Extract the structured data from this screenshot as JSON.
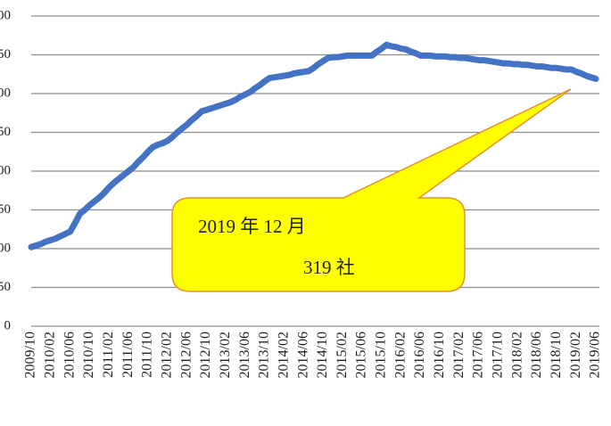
{
  "chart_data": {
    "type": "line",
    "categories": [
      "2009/10",
      null,
      null,
      null,
      "2010/02",
      null,
      null,
      null,
      "2010/06",
      null,
      null,
      null,
      "2010/10",
      null,
      null,
      null,
      "2011/02",
      null,
      null,
      null,
      "2011/06",
      null,
      null,
      null,
      "2011/10",
      null,
      null,
      null,
      "2012/02",
      null,
      null,
      null,
      "2012/06",
      null,
      null,
      null,
      "2012/10",
      null,
      null,
      null,
      "2013/02",
      null,
      null,
      null,
      "2013/06",
      null,
      null,
      null,
      "2013/10",
      null,
      null,
      null,
      "2014/02",
      null,
      null,
      null,
      "2014/06",
      null,
      null,
      null,
      "2014/10",
      null,
      null,
      null,
      "2015/02",
      null,
      null,
      null,
      "2015/06",
      null,
      null,
      null,
      "2015/10",
      null,
      null,
      null,
      "2016/02",
      null,
      null,
      null,
      "2016/06",
      null,
      null,
      null,
      "2016/10",
      null,
      null,
      null,
      "2017/02",
      null,
      null,
      null,
      "2017/06",
      null,
      null,
      null,
      "2017/10",
      null,
      null,
      null,
      "2018/02",
      null,
      null,
      null,
      "2018/06",
      null,
      null,
      null,
      "2018/10",
      null,
      null,
      null,
      "2019/02",
      null,
      null,
      null,
      "2019/06"
    ],
    "series": [
      {
        "color": "#4472c4",
        "values": [
          102,
          104,
          106,
          109,
          111,
          113,
          116,
          119,
          122,
          133,
          145,
          150,
          156,
          161,
          166,
          172,
          179,
          185,
          190,
          195,
          200,
          205,
          212,
          218,
          225,
          231,
          234,
          236,
          239,
          244,
          250,
          255,
          260,
          266,
          271,
          277,
          279,
          281,
          283,
          285,
          287,
          289,
          292,
          296,
          299,
          302,
          307,
          311,
          316,
          320,
          321,
          322,
          323,
          324,
          326,
          327,
          328,
          329,
          333,
          338,
          342,
          346,
          347,
          347,
          348,
          349,
          349,
          349,
          349,
          349,
          349,
          354,
          358,
          363,
          361,
          360,
          358,
          357,
          354,
          352,
          349,
          349,
          349,
          348,
          348,
          348,
          347,
          347,
          346,
          346,
          345,
          344,
          343,
          343,
          342,
          341,
          340,
          339,
          339,
          338,
          338,
          337,
          337,
          336,
          335,
          335,
          334,
          333,
          333,
          332,
          331,
          331,
          328,
          326,
          323,
          321,
          319
        ]
      }
    ],
    "ylim": [
      0,
      400
    ],
    "yticks": [
      0,
      50,
      {
        "value": 100,
        "label": "00"
      },
      {
        "value": 150,
        "label": "50"
      },
      {
        "value": 200,
        "label": "00"
      },
      {
        "value": 250,
        "label": "50"
      },
      {
        "value": 300,
        "label": "00"
      },
      {
        "value": 350,
        "label": "50"
      },
      {
        "value": 400,
        "label": "00"
      }
    ],
    "grid": true,
    "annotations": [
      "2019 年 12 月",
      "319 社"
    ]
  }
}
